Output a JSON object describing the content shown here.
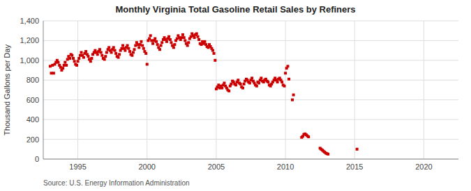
{
  "chart_data": {
    "type": "scatter",
    "title": "Monthly Virginia Total Gasoline Retail Sales by Refiners",
    "ylabel": "Thousand Gallons per Day",
    "source": "Source: U.S. Energy Information Administration",
    "xlim": [
      1992.5,
      2022.5
    ],
    "ylim": [
      0,
      1400
    ],
    "xticks": [
      1995,
      2000,
      2005,
      2010,
      2015,
      2020
    ],
    "yticks": [
      0,
      200,
      400,
      600,
      800,
      {
        "value": 1000,
        "label": "1,000"
      },
      {
        "value": 1200,
        "label": "1,200"
      },
      {
        "value": 1400,
        "label": "1,400"
      }
    ],
    "grid": true,
    "color": "#cc0000",
    "marker": "square",
    "x": [
      1993.0,
      1993.08,
      1993.17,
      1993.25,
      1993.33,
      1993.42,
      1993.5,
      1993.58,
      1993.67,
      1993.75,
      1993.83,
      1993.92,
      1994.0,
      1994.08,
      1994.17,
      1994.25,
      1994.33,
      1994.42,
      1994.5,
      1994.58,
      1994.67,
      1994.75,
      1994.83,
      1994.92,
      1995.0,
      1995.08,
      1995.17,
      1995.25,
      1995.33,
      1995.42,
      1995.5,
      1995.58,
      1995.67,
      1995.75,
      1995.83,
      1995.92,
      1996.0,
      1996.08,
      1996.17,
      1996.25,
      1996.33,
      1996.42,
      1996.5,
      1996.58,
      1996.67,
      1996.75,
      1996.83,
      1996.92,
      1997.0,
      1997.08,
      1997.17,
      1997.25,
      1997.33,
      1997.42,
      1997.5,
      1997.58,
      1997.67,
      1997.75,
      1997.83,
      1997.92,
      1998.0,
      1998.08,
      1998.17,
      1998.25,
      1998.33,
      1998.42,
      1998.5,
      1998.58,
      1998.67,
      1998.75,
      1998.83,
      1998.92,
      1999.0,
      1999.08,
      1999.17,
      1999.25,
      1999.33,
      1999.42,
      1999.5,
      1999.58,
      1999.67,
      1999.75,
      1999.83,
      1999.92,
      2000.0,
      2000.08,
      2000.17,
      2000.25,
      2000.33,
      2000.42,
      2000.5,
      2000.58,
      2000.67,
      2000.75,
      2000.83,
      2000.92,
      2001.0,
      2001.08,
      2001.17,
      2001.25,
      2001.33,
      2001.42,
      2001.5,
      2001.58,
      2001.67,
      2001.75,
      2001.83,
      2001.92,
      2002.0,
      2002.08,
      2002.17,
      2002.25,
      2002.33,
      2002.42,
      2002.5,
      2002.58,
      2002.67,
      2002.75,
      2002.83,
      2002.92,
      2003.0,
      2003.08,
      2003.17,
      2003.25,
      2003.33,
      2003.42,
      2003.5,
      2003.58,
      2003.67,
      2003.75,
      2003.83,
      2003.92,
      2004.0,
      2004.08,
      2004.17,
      2004.25,
      2004.33,
      2004.42,
      2004.5,
      2004.58,
      2004.67,
      2004.75,
      2004.83,
      2004.92,
      2005.0,
      2005.08,
      2005.17,
      2005.25,
      2005.33,
      2005.42,
      2005.5,
      2005.58,
      2005.67,
      2005.75,
      2005.83,
      2005.92,
      2006.0,
      2006.08,
      2006.17,
      2006.25,
      2006.33,
      2006.42,
      2006.5,
      2006.58,
      2006.67,
      2006.75,
      2006.83,
      2006.92,
      2007.0,
      2007.08,
      2007.17,
      2007.25,
      2007.33,
      2007.42,
      2007.5,
      2007.58,
      2007.67,
      2007.75,
      2007.83,
      2007.92,
      2008.0,
      2008.08,
      2008.17,
      2008.25,
      2008.33,
      2008.42,
      2008.5,
      2008.58,
      2008.67,
      2008.75,
      2008.83,
      2008.92,
      2009.0,
      2009.08,
      2009.17,
      2009.25,
      2009.33,
      2009.42,
      2009.5,
      2009.58,
      2009.67,
      2009.75,
      2009.83,
      2009.92,
      2010.0,
      2010.08,
      2010.17,
      2010.25,
      2010.5,
      2010.58,
      2011.17,
      2011.25,
      2011.33,
      2011.42,
      2011.5,
      2011.58,
      2011.67,
      2012.5,
      2012.58,
      2012.67,
      2012.75,
      2012.83,
      2012.92,
      2013.0,
      2013.08,
      2015.17
    ],
    "values": [
      940,
      870,
      950,
      870,
      960,
      980,
      1000,
      980,
      950,
      930,
      900,
      920,
      950,
      980,
      950,
      1010,
      1040,
      1020,
      1060,
      1050,
      1020,
      990,
      960,
      950,
      990,
      1020,
      1050,
      1080,
      1050,
      1030,
      1070,
      1090,
      1060,
      1040,
      1010,
      990,
      1020,
      1060,
      1080,
      1100,
      1080,
      1060,
      1090,
      1110,
      1080,
      1050,
      1020,
      1010,
      1040,
      1080,
      1110,
      1130,
      1100,
      1080,
      1110,
      1130,
      1100,
      1070,
      1040,
      1030,
      1060,
      1100,
      1120,
      1150,
      1120,
      1100,
      1130,
      1150,
      1120,
      1090,
      1060,
      1050,
      1080,
      1110,
      1150,
      1180,
      1160,
      1130,
      1160,
      1190,
      1150,
      1120,
      1090,
      1070,
      960,
      1200,
      1220,
      1250,
      1200,
      1170,
      1200,
      1220,
      1190,
      1160,
      1130,
      1110,
      1150,
      1180,
      1210,
      1230,
      1210,
      1190,
      1220,
      1240,
      1210,
      1180,
      1150,
      1130,
      1160,
      1200,
      1220,
      1250,
      1230,
      1210,
      1230,
      1260,
      1230,
      1200,
      1170,
      1150,
      1180,
      1220,
      1240,
      1270,
      1250,
      1230,
      1260,
      1270,
      1240,
      1210,
      1170,
      1160,
      1190,
      1170,
      1190,
      1160,
      1140,
      1130,
      1160,
      1140,
      1120,
      1100,
      1070,
      1000,
      710,
      730,
      750,
      720,
      740,
      720,
      750,
      770,
      740,
      720,
      700,
      690,
      740,
      760,
      790,
      780,
      760,
      750,
      780,
      800,
      770,
      760,
      730,
      720,
      760,
      790,
      810,
      800,
      780,
      770,
      800,
      820,
      790,
      770,
      750,
      740,
      780,
      770,
      800,
      820,
      790,
      780,
      800,
      810,
      790,
      780,
      750,
      740,
      760,
      780,
      800,
      820,
      800,
      780,
      810,
      820,
      800,
      780,
      750,
      740,
      870,
      920,
      940,
      810,
      600,
      650,
      220,
      230,
      250,
      255,
      245,
      235,
      225,
      110,
      100,
      90,
      80,
      70,
      60,
      55,
      50,
      100
    ]
  }
}
